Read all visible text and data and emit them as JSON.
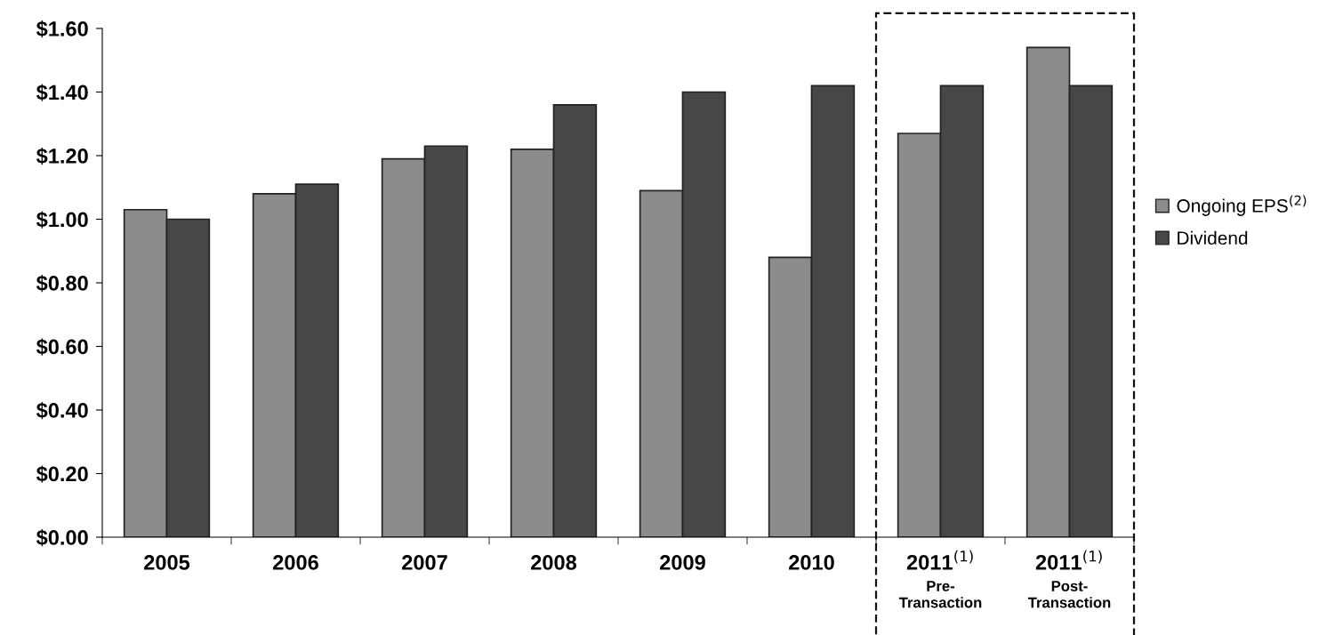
{
  "chart_data": {
    "type": "bar",
    "categories": [
      "2005",
      "2006",
      "2007",
      "2008",
      "2009",
      "2010",
      "2011$^{(1)}$\nPre-\nTransaction",
      "2011$^{(1)}$\nPost-\nTransaction"
    ],
    "series": [
      {
        "name": "Ongoing EPS$^{(2)}$",
        "color": "#8c8c8c",
        "values": [
          1.03,
          1.08,
          1.19,
          1.22,
          1.09,
          0.88,
          1.27,
          1.54
        ]
      },
      {
        "name": "Dividend",
        "color": "#474747",
        "values": [
          1.0,
          1.11,
          1.23,
          1.36,
          1.4,
          1.42,
          1.42,
          1.42
        ]
      }
    ],
    "ylim": [
      0,
      1.6
    ],
    "yticks": [
      {
        "value": 0,
        "label": "$0.00"
      },
      {
        "value": 0.2,
        "label": "$0.20"
      },
      {
        "value": 0.4,
        "label": "$0.40"
      },
      {
        "value": 0.6,
        "label": "$0.60"
      },
      {
        "value": 0.8,
        "label": "$0.80"
      },
      {
        "value": 1.0,
        "label": "$1.00"
      },
      {
        "value": 1.2,
        "label": "$1.20"
      },
      {
        "value": 1.4,
        "label": "$1.40"
      },
      {
        "value": 1.6,
        "label": "$1.60"
      }
    ],
    "grid": false,
    "legend": "right"
  }
}
